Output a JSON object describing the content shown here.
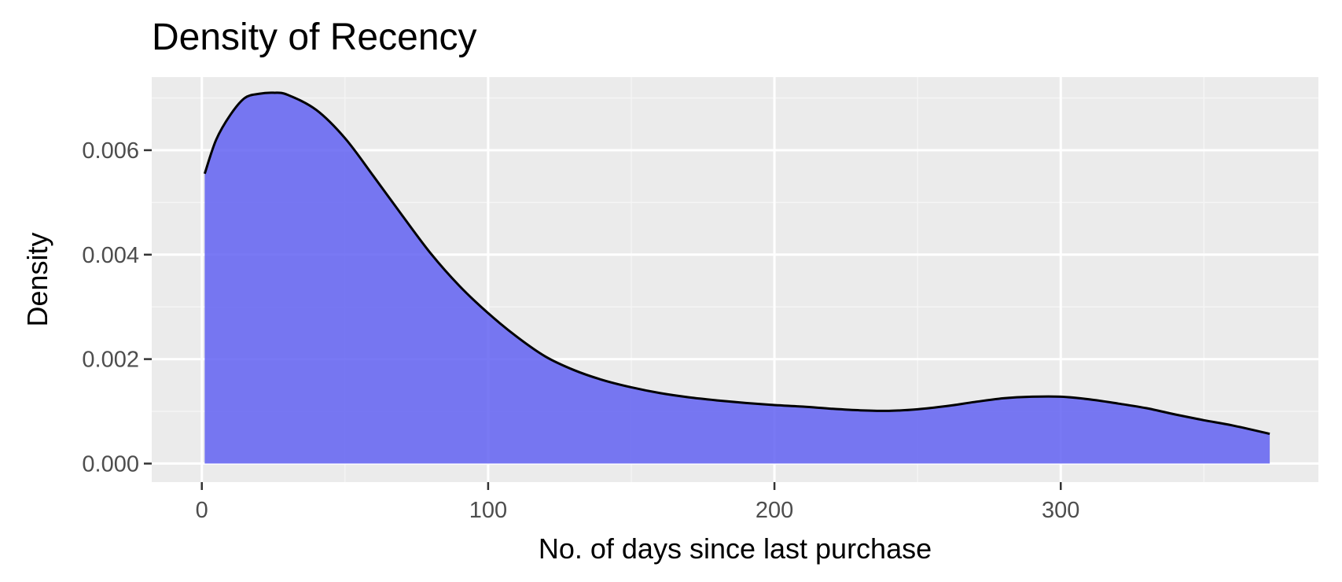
{
  "chart_data": {
    "type": "area",
    "title": "Density of Recency",
    "xlabel": "No. of days since last purchase",
    "ylabel": "Density",
    "xlim": [
      -17.5,
      390
    ],
    "ylim": [
      -0.000355,
      0.0074
    ],
    "x_ticks": [
      0,
      100,
      200,
      300
    ],
    "x_tick_labels": [
      "0",
      "100",
      "200",
      "300"
    ],
    "y_ticks": [
      0,
      0.002,
      0.004,
      0.006
    ],
    "y_tick_labels": [
      "0.000",
      "0.002",
      "0.004",
      "0.006"
    ],
    "grid": true,
    "legend": "none",
    "series": [
      {
        "x": [
          1,
          5,
          10,
          15,
          20,
          25,
          30,
          40,
          50,
          60,
          70,
          80,
          90,
          100,
          110,
          120,
          130,
          140,
          150,
          160,
          170,
          180,
          190,
          200,
          210,
          220,
          230,
          240,
          250,
          260,
          270,
          280,
          290,
          300,
          310,
          320,
          330,
          340,
          350,
          360,
          373
        ],
        "y": [
          0.00555,
          0.0062,
          0.00668,
          0.007,
          0.00708,
          0.0071,
          0.00706,
          0.00677,
          0.00623,
          0.0055,
          0.00475,
          0.00402,
          0.0034,
          0.00288,
          0.00243,
          0.00205,
          0.00179,
          0.0016,
          0.00146,
          0.00135,
          0.00127,
          0.00121,
          0.00116,
          0.00112,
          0.00109,
          0.00105,
          0.00102,
          0.00101,
          0.00104,
          0.0011,
          0.00118,
          0.00125,
          0.00128,
          0.00128,
          0.00123,
          0.00115,
          0.00106,
          0.00094,
          0.00083,
          0.00073,
          0.00057
        ]
      }
    ],
    "colors": {
      "fill": "#5b5bf2",
      "line": "#000000",
      "panel": "#ebebeb",
      "grid_major": "#ffffff",
      "grid_minor": "#f5f5f5",
      "tick_text": "#4d4d4d"
    }
  }
}
